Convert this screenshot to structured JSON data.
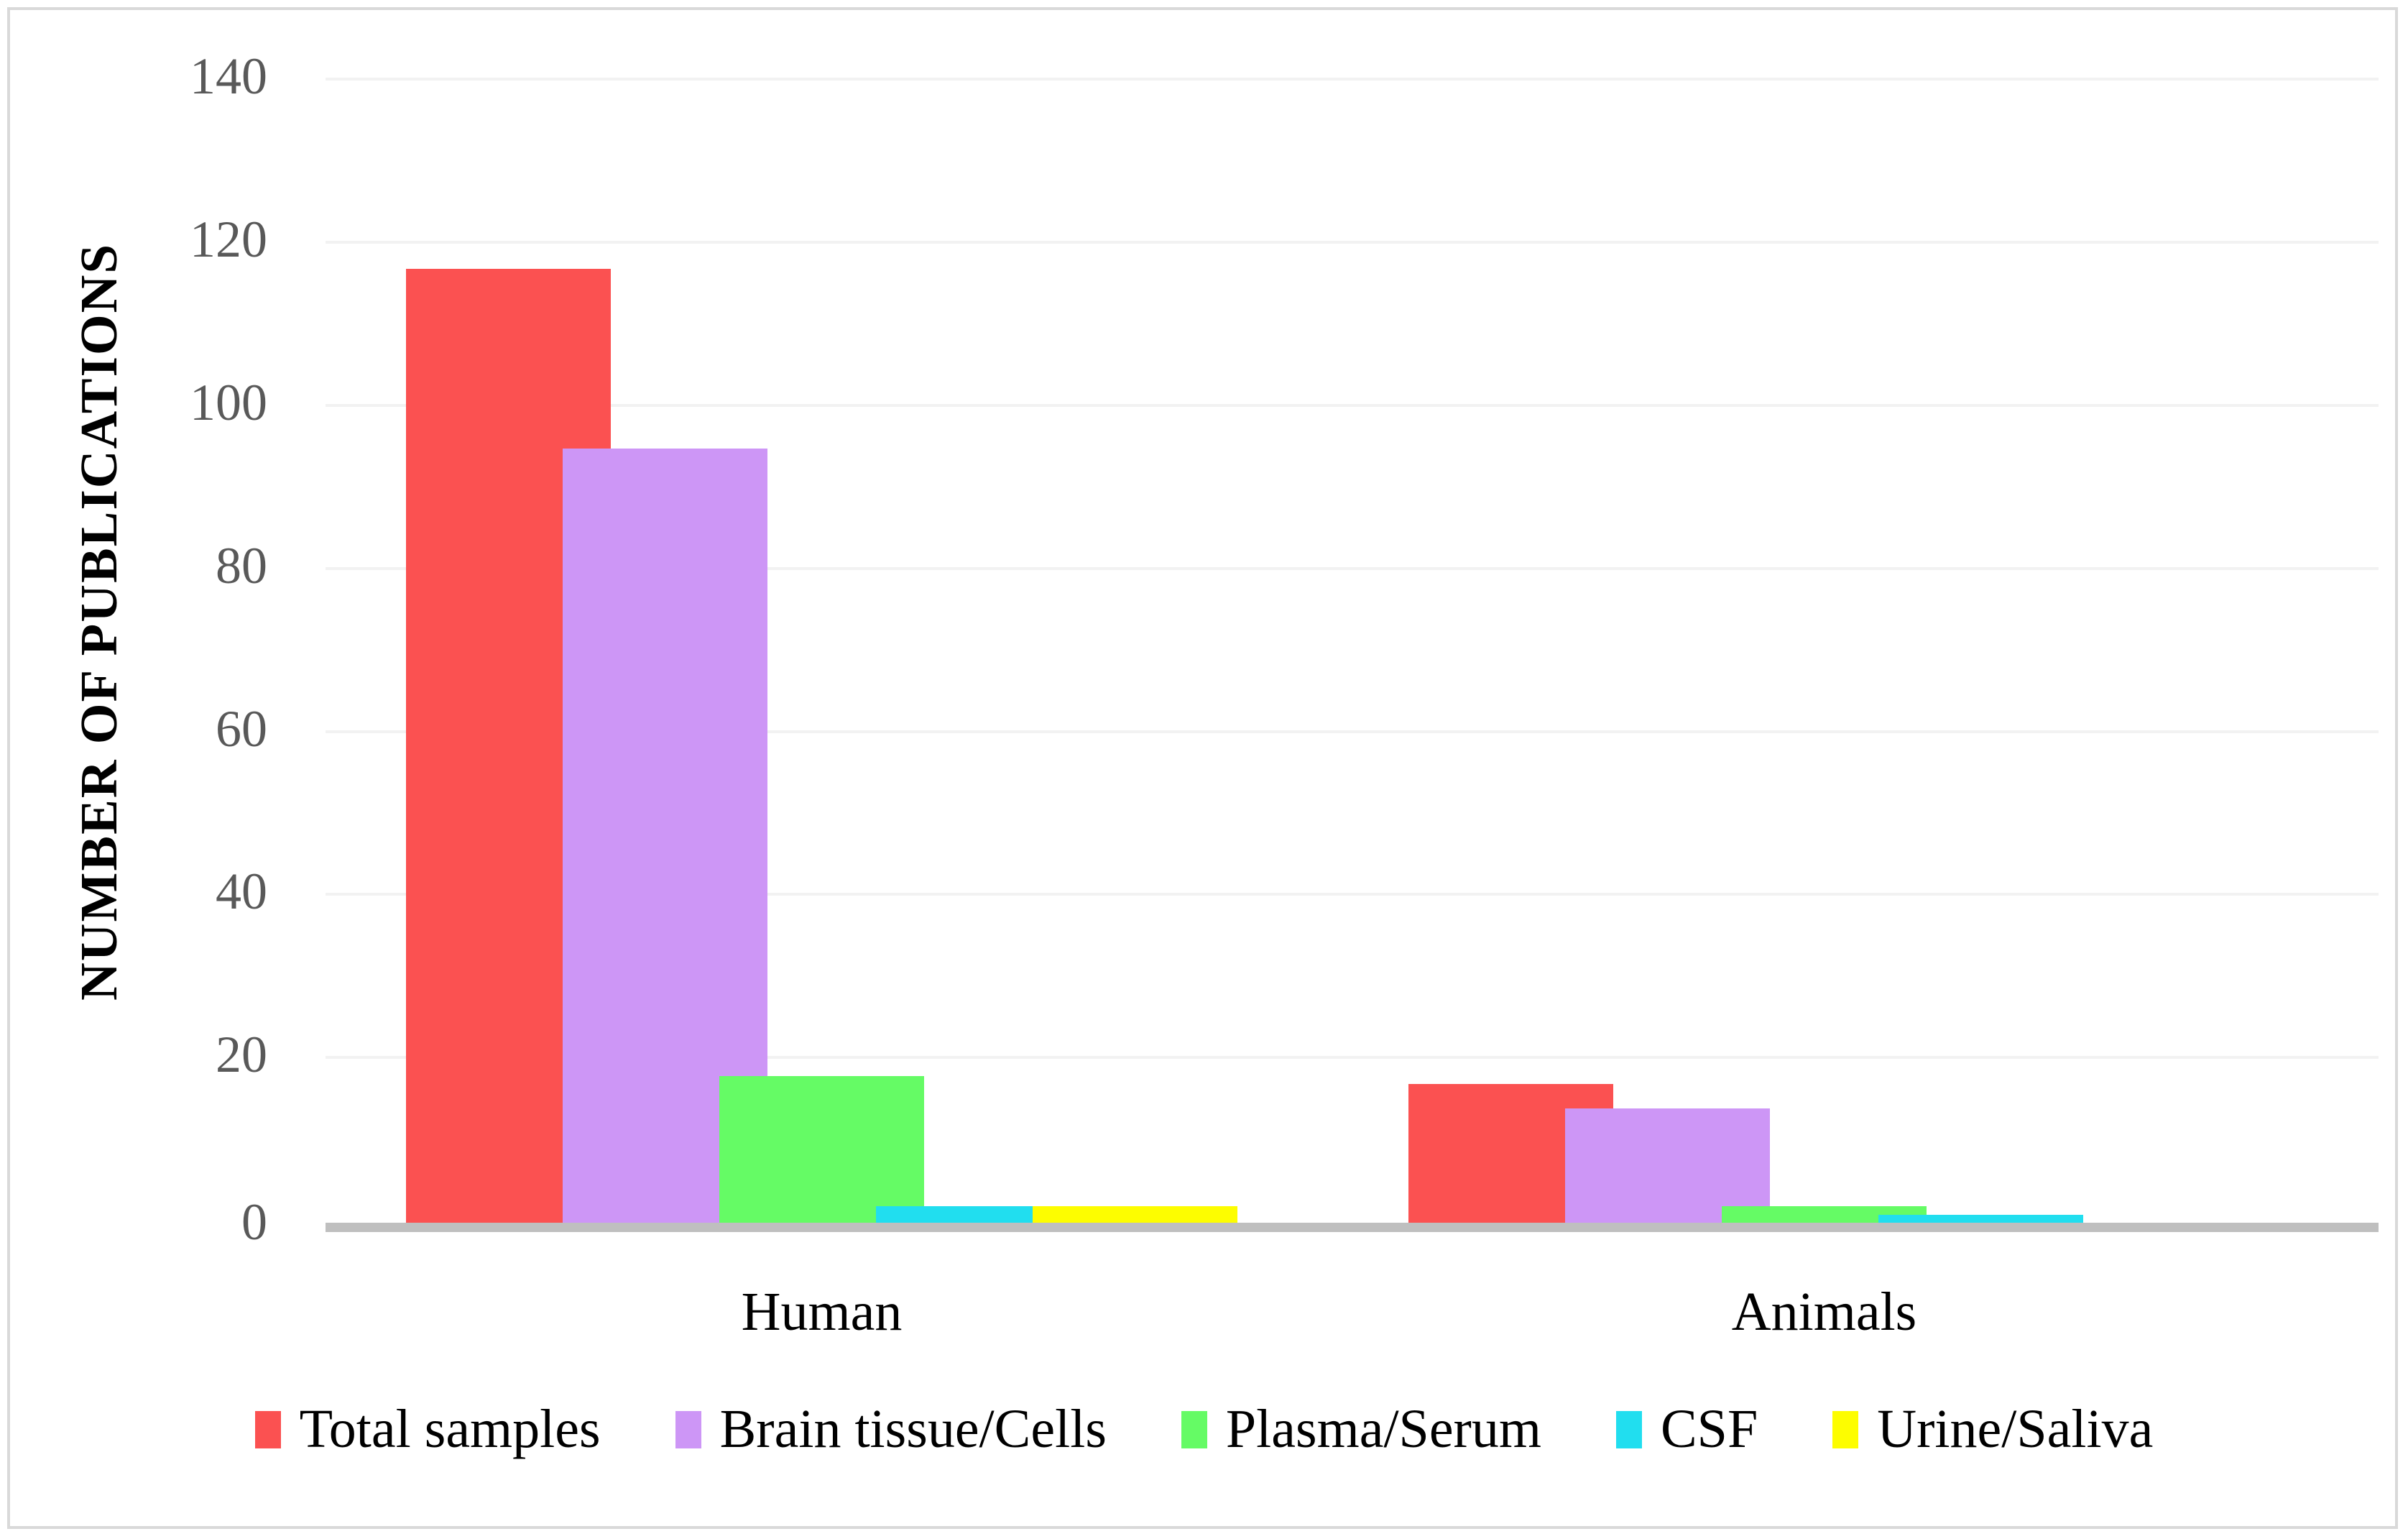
{
  "figure": {
    "background": "#FFFFFF",
    "border_color": "#D9D9D9"
  },
  "chart_data": {
    "type": "bar",
    "title": "",
    "ylabel": "NUMBER OF PUBLICATIONS",
    "xlabel": "",
    "categories": [
      "Human",
      "Animals"
    ],
    "series": [
      {
        "name": "Total samples",
        "color": "#FB5151",
        "values": [
          117,
          17
        ]
      },
      {
        "name": "Brain tissue/Cells",
        "color": "#CD96F6",
        "values": [
          95,
          14
        ]
      },
      {
        "name": "Plasma/Serum",
        "color": "#65FB65",
        "values": [
          18,
          2
        ]
      },
      {
        "name": "CSF",
        "color": "#21DEEF",
        "values": [
          2,
          1
        ]
      },
      {
        "name": "Urine/Saliva",
        "color": "#FDFD00",
        "values": [
          2,
          0
        ]
      }
    ],
    "ylim": [
      0,
      140
    ],
    "yticks": [
      0,
      20,
      40,
      60,
      80,
      100,
      120,
      140
    ],
    "grid": true,
    "legend_position": "bottom",
    "colors": {
      "gridline": "#F2F2F2",
      "axis_line": "#BFBFBF",
      "tick_label": "#595959",
      "category_label": "#000000",
      "legend_label": "#000000"
    }
  }
}
